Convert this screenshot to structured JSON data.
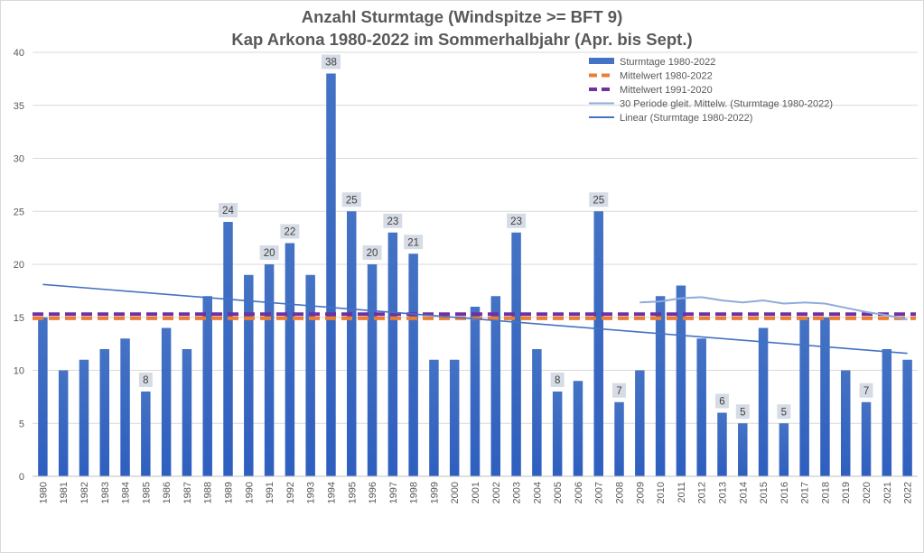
{
  "chart_data": {
    "type": "bar",
    "title": "Anzahl Sturmtage (Windspitze >= BFT 9)",
    "subtitle": "Kap Arkona 1980-2022 im Sommerhalbjahr (Apr. bis Sept.)",
    "xlabel": "",
    "ylabel": "",
    "ylim": [
      0,
      40
    ],
    "yticks": [
      0,
      5,
      10,
      15,
      20,
      25,
      30,
      35,
      40
    ],
    "grid": true,
    "legend_position": "top-right",
    "categories": [
      "1980",
      "1981",
      "1982",
      "1983",
      "1984",
      "1985",
      "1986",
      "1987",
      "1988",
      "1989",
      "1990",
      "1991",
      "1992",
      "1993",
      "1994",
      "1995",
      "1996",
      "1997",
      "1998",
      "1999",
      "2000",
      "2001",
      "2002",
      "2003",
      "2004",
      "2005",
      "2006",
      "2007",
      "2008",
      "2009",
      "2010",
      "2011",
      "2012",
      "2013",
      "2014",
      "2015",
      "2016",
      "2017",
      "2018",
      "2019",
      "2020",
      "2021",
      "2022"
    ],
    "series": [
      {
        "name": "Sturmtage 1980-2022",
        "kind": "bar",
        "color": "#4472c4",
        "values": [
          15,
          10,
          11,
          12,
          13,
          8,
          14,
          12,
          17,
          24,
          19,
          20,
          22,
          19,
          38,
          25,
          20,
          23,
          21,
          11,
          11,
          16,
          17,
          23,
          12,
          8,
          9,
          25,
          7,
          10,
          17,
          18,
          13,
          6,
          5,
          14,
          5,
          15,
          15,
          10,
          7,
          12,
          11
        ],
        "labeled": [
          "1985",
          "1989",
          "1991",
          "1992",
          "1994",
          "1995",
          "1996",
          "1997",
          "1998",
          "2003",
          "2005",
          "2007",
          "2008",
          "2013",
          "2014",
          "2016",
          "2020"
        ]
      },
      {
        "name": "Mittelwert 1980-2022",
        "kind": "hline-dashed",
        "color": "#ed7d31",
        "value": 14.9
      },
      {
        "name": "Mittelwert 1991-2020",
        "kind": "hline-dashed",
        "color": "#7030a0",
        "value": 15.3
      },
      {
        "name": "30 Periode gleit. Mittelw. (Sturmtage 1980-2022)",
        "kind": "line",
        "color": "#8faadc",
        "x": [
          "2009",
          "2010",
          "2011",
          "2012",
          "2013",
          "2014",
          "2015",
          "2016",
          "2017",
          "2018",
          "2019",
          "2020",
          "2021",
          "2022"
        ],
        "values": [
          16.4,
          16.5,
          16.8,
          16.9,
          16.6,
          16.4,
          16.6,
          16.3,
          16.4,
          16.3,
          15.9,
          15.5,
          15.2,
          14.8
        ]
      },
      {
        "name": "Linear (Sturmtage 1980-2022)",
        "kind": "trendline",
        "color": "#4472c4",
        "start": 18.1,
        "end": 11.6
      }
    ]
  }
}
